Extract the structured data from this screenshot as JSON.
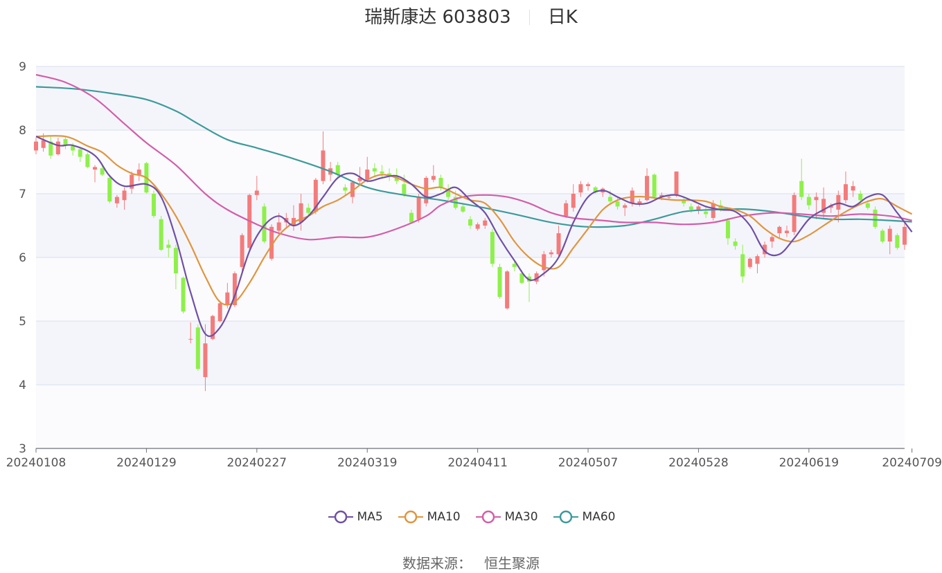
{
  "title": {
    "stock": "瑞斯康达 603803",
    "period": "日K"
  },
  "source": {
    "label": "数据来源：",
    "name": "恒生聚源"
  },
  "colors": {
    "up": "#f47b7b",
    "down": "#8ef04a",
    "MA5": "#6f4fa6",
    "MA10": "#e0953e",
    "MA30": "#d35ea8",
    "MA60": "#3d9a9a",
    "grid": "#d9deec",
    "band": "#f4f5fb"
  },
  "chart_data": {
    "type": "candlestick",
    "ylim": [
      3,
      9
    ],
    "yticks": [
      3,
      4,
      5,
      6,
      7,
      8,
      9
    ],
    "x_tick_labels": [
      "20240108",
      "20240129",
      "20240227",
      "20240319",
      "20240411",
      "20240507",
      "20240528",
      "20240619",
      "20240709"
    ],
    "x_tick_index": [
      0,
      15,
      30,
      45,
      60,
      75,
      90,
      105,
      119
    ],
    "legend": [
      "MA5",
      "MA10",
      "MA30",
      "MA60"
    ],
    "candles": [
      [
        7.68,
        7.88,
        7.62,
        7.82
      ],
      [
        7.72,
        7.95,
        7.66,
        7.84
      ],
      [
        7.82,
        7.9,
        7.55,
        7.6
      ],
      [
        7.62,
        7.88,
        7.6,
        7.82
      ],
      [
        7.86,
        7.9,
        7.7,
        7.76
      ],
      [
        7.75,
        7.8,
        7.6,
        7.68
      ],
      [
        7.7,
        7.72,
        7.5,
        7.58
      ],
      [
        7.62,
        7.65,
        7.4,
        7.42
      ],
      [
        7.38,
        7.45,
        7.18,
        7.42
      ],
      [
        7.4,
        7.45,
        7.28,
        7.3
      ],
      [
        7.25,
        7.3,
        6.85,
        6.88
      ],
      [
        6.85,
        6.98,
        6.78,
        6.95
      ],
      [
        6.9,
        7.1,
        6.75,
        7.05
      ],
      [
        7.08,
        7.35,
        7.0,
        7.3
      ],
      [
        7.3,
        7.48,
        7.2,
        7.38
      ],
      [
        7.48,
        7.5,
        7.0,
        7.02
      ],
      [
        7.0,
        7.05,
        6.62,
        6.65
      ],
      [
        6.6,
        6.65,
        6.1,
        6.12
      ],
      [
        6.2,
        6.28,
        6.0,
        6.15
      ],
      [
        6.15,
        6.2,
        5.5,
        5.75
      ],
      [
        5.68,
        5.7,
        5.12,
        5.15
      ],
      [
        4.72,
        4.98,
        4.65,
        4.72
      ],
      [
        4.9,
        4.95,
        4.22,
        4.25
      ],
      [
        4.12,
        4.95,
        3.9,
        4.65
      ],
      [
        4.72,
        5.1,
        4.7,
        5.08
      ],
      [
        5.0,
        5.32,
        4.98,
        5.28
      ],
      [
        5.25,
        5.6,
        5.2,
        5.45
      ],
      [
        5.25,
        5.78,
        5.22,
        5.75
      ],
      [
        5.85,
        6.38,
        5.75,
        6.35
      ],
      [
        6.15,
        7.0,
        6.1,
        6.98
      ],
      [
        6.98,
        7.28,
        6.9,
        7.05
      ],
      [
        6.8,
        6.85,
        6.22,
        6.25
      ],
      [
        5.98,
        6.52,
        5.95,
        6.48
      ],
      [
        6.42,
        6.7,
        6.35,
        6.55
      ],
      [
        6.55,
        6.7,
        6.48,
        6.62
      ],
      [
        6.5,
        6.82,
        6.42,
        6.62
      ],
      [
        6.55,
        7.0,
        6.42,
        6.85
      ],
      [
        6.78,
        6.85,
        6.65,
        6.7
      ],
      [
        6.72,
        7.25,
        6.68,
        7.22
      ],
      [
        7.2,
        7.98,
        7.15,
        7.68
      ],
      [
        7.3,
        7.5,
        7.2,
        7.4
      ],
      [
        7.45,
        7.5,
        7.25,
        7.3
      ],
      [
        7.1,
        7.15,
        6.98,
        7.05
      ],
      [
        6.95,
        7.2,
        6.85,
        7.18
      ],
      [
        7.2,
        7.42,
        7.15,
        7.25
      ],
      [
        7.22,
        7.58,
        7.18,
        7.38
      ],
      [
        7.4,
        7.48,
        7.28,
        7.35
      ],
      [
        7.35,
        7.45,
        7.25,
        7.32
      ],
      [
        7.32,
        7.4,
        7.2,
        7.28
      ],
      [
        7.28,
        7.4,
        7.15,
        7.2
      ],
      [
        7.15,
        7.3,
        6.95,
        6.98
      ],
      [
        6.7,
        6.75,
        6.55,
        6.55
      ],
      [
        6.6,
        7.0,
        6.55,
        6.95
      ],
      [
        6.85,
        7.28,
        6.8,
        7.25
      ],
      [
        7.22,
        7.45,
        7.18,
        7.28
      ],
      [
        7.25,
        7.3,
        7.05,
        7.1
      ],
      [
        7.08,
        7.15,
        6.9,
        6.95
      ],
      [
        6.95,
        7.05,
        6.75,
        6.78
      ],
      [
        6.8,
        6.85,
        6.7,
        6.72
      ],
      [
        6.6,
        6.65,
        6.45,
        6.5
      ],
      [
        6.45,
        6.55,
        6.42,
        6.52
      ],
      [
        6.5,
        6.62,
        6.45,
        6.58
      ],
      [
        6.4,
        6.45,
        5.85,
        5.9
      ],
      [
        5.85,
        5.9,
        5.35,
        5.38
      ],
      [
        5.2,
        5.8,
        5.18,
        5.78
      ],
      [
        5.9,
        5.95,
        5.78,
        5.85
      ],
      [
        5.75,
        5.8,
        5.58,
        5.6
      ],
      [
        5.7,
        5.75,
        5.3,
        5.62
      ],
      [
        5.62,
        5.78,
        5.58,
        5.75
      ],
      [
        5.8,
        6.1,
        5.7,
        6.05
      ],
      [
        6.05,
        6.12,
        6.0,
        6.08
      ],
      [
        6.05,
        6.5,
        6.0,
        6.38
      ],
      [
        6.65,
        6.9,
        6.62,
        6.85
      ],
      [
        6.78,
        7.15,
        6.72,
        7.0
      ],
      [
        7.02,
        7.2,
        6.95,
        7.15
      ],
      [
        7.12,
        7.18,
        7.05,
        7.15
      ],
      [
        7.1,
        7.12,
        7.0,
        7.02
      ],
      [
        7.02,
        7.1,
        6.95,
        7.08
      ],
      [
        6.95,
        7.05,
        6.85,
        6.88
      ],
      [
        6.88,
        6.95,
        6.75,
        6.8
      ],
      [
        6.78,
        6.85,
        6.65,
        6.82
      ],
      [
        6.85,
        7.1,
        6.8,
        7.05
      ],
      [
        6.85,
        6.92,
        6.8,
        6.88
      ],
      [
        6.9,
        7.4,
        6.88,
        7.28
      ],
      [
        7.3,
        7.32,
        6.92,
        6.95
      ],
      [
        6.95,
        7.02,
        6.9,
        6.98
      ],
      [
        6.95,
        6.98,
        6.9,
        6.95
      ],
      [
        6.98,
        7.35,
        6.95,
        7.35
      ],
      [
        6.9,
        6.95,
        6.8,
        6.85
      ],
      [
        6.8,
        6.85,
        6.7,
        6.75
      ],
      [
        6.75,
        6.82,
        6.68,
        6.8
      ],
      [
        6.72,
        6.8,
        6.62,
        6.68
      ],
      [
        6.62,
        6.9,
        6.58,
        6.85
      ],
      [
        6.82,
        6.9,
        6.72,
        6.75
      ],
      [
        6.58,
        6.62,
        6.2,
        6.3
      ],
      [
        6.25,
        6.3,
        6.12,
        6.18
      ],
      [
        6.05,
        6.2,
        5.6,
        5.7
      ],
      [
        5.85,
        6.0,
        5.82,
        5.98
      ],
      [
        5.9,
        6.05,
        5.75,
        6.02
      ],
      [
        6.05,
        6.25,
        6.0,
        6.2
      ],
      [
        6.25,
        6.35,
        6.15,
        6.32
      ],
      [
        6.38,
        6.5,
        6.3,
        6.48
      ],
      [
        6.38,
        6.5,
        6.32,
        6.42
      ],
      [
        6.4,
        7.02,
        6.35,
        6.98
      ],
      [
        7.2,
        7.55,
        6.9,
        6.95
      ],
      [
        6.95,
        7.0,
        6.75,
        6.82
      ],
      [
        6.9,
        7.02,
        6.6,
        6.95
      ],
      [
        6.7,
        7.1,
        6.62,
        6.92
      ],
      [
        6.78,
        6.85,
        6.7,
        6.82
      ],
      [
        6.75,
        7.05,
        6.55,
        6.98
      ],
      [
        6.9,
        7.35,
        6.85,
        7.15
      ],
      [
        7.05,
        7.2,
        6.95,
        7.12
      ],
      [
        7.0,
        7.05,
        6.85,
        6.9
      ],
      [
        6.85,
        6.9,
        6.75,
        6.78
      ],
      [
        6.75,
        6.8,
        6.45,
        6.48
      ],
      [
        6.42,
        6.45,
        6.22,
        6.25
      ],
      [
        6.25,
        6.5,
        6.05,
        6.45
      ],
      [
        6.35,
        6.38,
        6.12,
        6.15
      ],
      [
        6.2,
        6.55,
        6.12,
        6.48
      ]
    ],
    "ma_anchors": {
      "MA5": [
        [
          0,
          7.9
        ],
        [
          3,
          7.76
        ],
        [
          5,
          7.76
        ],
        [
          8,
          7.6
        ],
        [
          10,
          7.28
        ],
        [
          12,
          7.12
        ],
        [
          15,
          7.15
        ],
        [
          17,
          6.95
        ],
        [
          19,
          6.3
        ],
        [
          21,
          5.45
        ],
        [
          23,
          4.8
        ],
        [
          25,
          4.9
        ],
        [
          27,
          5.4
        ],
        [
          29,
          6.1
        ],
        [
          31,
          6.5
        ],
        [
          33,
          6.65
        ],
        [
          35,
          6.5
        ],
        [
          37,
          6.65
        ],
        [
          39,
          6.95
        ],
        [
          41,
          7.25
        ],
        [
          43,
          7.32
        ],
        [
          45,
          7.2
        ],
        [
          47,
          7.25
        ],
        [
          49,
          7.28
        ],
        [
          51,
          7.15
        ],
        [
          53,
          6.95
        ],
        [
          55,
          7.0
        ],
        [
          57,
          7.1
        ],
        [
          59,
          6.9
        ],
        [
          61,
          6.7
        ],
        [
          63,
          6.3
        ],
        [
          65,
          5.95
        ],
        [
          67,
          5.65
        ],
        [
          69,
          5.75
        ],
        [
          71,
          6.0
        ],
        [
          73,
          6.55
        ],
        [
          75,
          6.95
        ],
        [
          77,
          7.05
        ],
        [
          79,
          6.95
        ],
        [
          81,
          6.85
        ],
        [
          83,
          6.85
        ],
        [
          85,
          6.95
        ],
        [
          87,
          6.98
        ],
        [
          89,
          6.9
        ],
        [
          91,
          6.8
        ],
        [
          93,
          6.75
        ],
        [
          95,
          6.72
        ],
        [
          97,
          6.5
        ],
        [
          99,
          6.1
        ],
        [
          101,
          6.05
        ],
        [
          103,
          6.3
        ],
        [
          105,
          6.6
        ],
        [
          107,
          6.75
        ],
        [
          109,
          6.85
        ],
        [
          111,
          6.8
        ],
        [
          113,
          6.95
        ],
        [
          115,
          6.98
        ],
        [
          117,
          6.7
        ],
        [
          119,
          6.4
        ]
      ],
      "MA10": [
        [
          0,
          7.9
        ],
        [
          4,
          7.9
        ],
        [
          7,
          7.75
        ],
        [
          9,
          7.65
        ],
        [
          11,
          7.45
        ],
        [
          13,
          7.32
        ],
        [
          15,
          7.25
        ],
        [
          17,
          7.0
        ],
        [
          19,
          6.65
        ],
        [
          21,
          6.2
        ],
        [
          23,
          5.7
        ],
        [
          25,
          5.3
        ],
        [
          27,
          5.3
        ],
        [
          29,
          5.6
        ],
        [
          31,
          6.0
        ],
        [
          33,
          6.35
        ],
        [
          35,
          6.55
        ],
        [
          37,
          6.65
        ],
        [
          39,
          6.8
        ],
        [
          41,
          6.9
        ],
        [
          43,
          7.05
        ],
        [
          45,
          7.22
        ],
        [
          47,
          7.3
        ],
        [
          49,
          7.25
        ],
        [
          51,
          7.15
        ],
        [
          53,
          7.08
        ],
        [
          55,
          7.1
        ],
        [
          57,
          7.0
        ],
        [
          59,
          6.9
        ],
        [
          61,
          6.85
        ],
        [
          63,
          6.6
        ],
        [
          65,
          6.25
        ],
        [
          67,
          6.0
        ],
        [
          69,
          5.85
        ],
        [
          71,
          5.85
        ],
        [
          73,
          6.15
        ],
        [
          75,
          6.45
        ],
        [
          77,
          6.75
        ],
        [
          79,
          6.9
        ],
        [
          81,
          6.95
        ],
        [
          83,
          6.95
        ],
        [
          85,
          6.92
        ],
        [
          87,
          6.9
        ],
        [
          89,
          6.9
        ],
        [
          91,
          6.88
        ],
        [
          93,
          6.8
        ],
        [
          95,
          6.75
        ],
        [
          97,
          6.65
        ],
        [
          99,
          6.45
        ],
        [
          101,
          6.3
        ],
        [
          103,
          6.25
        ],
        [
          105,
          6.35
        ],
        [
          107,
          6.5
        ],
        [
          109,
          6.65
        ],
        [
          111,
          6.78
        ],
        [
          113,
          6.88
        ],
        [
          115,
          6.92
        ],
        [
          117,
          6.8
        ],
        [
          119,
          6.68
        ]
      ],
      "MA30": [
        [
          0,
          8.87
        ],
        [
          4,
          8.75
        ],
        [
          8,
          8.5
        ],
        [
          12,
          8.1
        ],
        [
          15,
          7.8
        ],
        [
          19,
          7.45
        ],
        [
          23,
          7.0
        ],
        [
          26,
          6.75
        ],
        [
          30,
          6.52
        ],
        [
          33,
          6.38
        ],
        [
          37,
          6.28
        ],
        [
          41,
          6.32
        ],
        [
          45,
          6.32
        ],
        [
          49,
          6.45
        ],
        [
          53,
          6.65
        ],
        [
          55,
          6.82
        ],
        [
          58,
          6.95
        ],
        [
          61,
          6.98
        ],
        [
          64,
          6.95
        ],
        [
          67,
          6.85
        ],
        [
          70,
          6.7
        ],
        [
          73,
          6.62
        ],
        [
          77,
          6.58
        ],
        [
          80,
          6.55
        ],
        [
          84,
          6.55
        ],
        [
          88,
          6.52
        ],
        [
          92,
          6.55
        ],
        [
          96,
          6.65
        ],
        [
          100,
          6.7
        ],
        [
          104,
          6.68
        ],
        [
          108,
          6.65
        ],
        [
          112,
          6.68
        ],
        [
          116,
          6.65
        ],
        [
          119,
          6.58
        ]
      ],
      "MA60": [
        [
          0,
          8.68
        ],
        [
          5,
          8.65
        ],
        [
          10,
          8.58
        ],
        [
          15,
          8.48
        ],
        [
          19,
          8.3
        ],
        [
          22,
          8.1
        ],
        [
          26,
          7.85
        ],
        [
          30,
          7.72
        ],
        [
          35,
          7.55
        ],
        [
          40,
          7.35
        ],
        [
          45,
          7.1
        ],
        [
          50,
          6.98
        ],
        [
          55,
          6.9
        ],
        [
          60,
          6.8
        ],
        [
          65,
          6.68
        ],
        [
          70,
          6.55
        ],
        [
          75,
          6.48
        ],
        [
          80,
          6.5
        ],
        [
          84,
          6.6
        ],
        [
          88,
          6.72
        ],
        [
          92,
          6.75
        ],
        [
          96,
          6.76
        ],
        [
          100,
          6.72
        ],
        [
          104,
          6.65
        ],
        [
          108,
          6.6
        ],
        [
          112,
          6.6
        ],
        [
          116,
          6.58
        ],
        [
          119,
          6.56
        ]
      ]
    }
  }
}
